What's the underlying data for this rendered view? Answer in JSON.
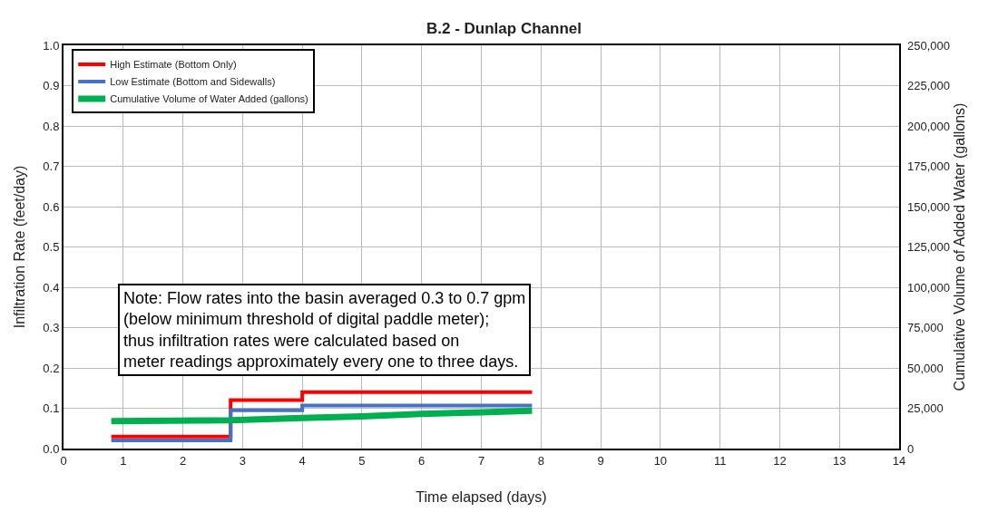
{
  "chart_data": {
    "type": "step",
    "title": "B.2 - Dunlap Channel",
    "xlabel": "Time elapsed (days)",
    "ylabel": "Infiltration Rate (feet/day)",
    "y2label": "Cumulative Volume of Added Water (gallons)",
    "x": [
      0.8,
      2.8,
      4,
      7.85
    ],
    "series": [
      {
        "name": "High Estimate (Bottom Only)",
        "color": "#ff0000",
        "values": [
          0.03,
          0.12,
          0.14,
          0.14
        ]
      },
      {
        "name": "Low Estimate (Bottom and Sidewalls)",
        "color": "#4472c4",
        "values": [
          0.02,
          0.095,
          0.107,
          0.107
        ]
      },
      {
        "name": "Cumulative Volume of Water Added (gallons)",
        "type": "line",
        "color": "#00b050",
        "axis": "y2",
        "x": [
          0.8,
          2.8,
          4,
          5,
          6,
          7,
          7.85
        ],
        "values": [
          17000,
          17500,
          19000,
          20000,
          21500,
          22500,
          23500
        ]
      }
    ],
    "xlim": [
      0,
      14
    ],
    "xticks": [
      0,
      1,
      2,
      3,
      4,
      5,
      6,
      7,
      8,
      9,
      10,
      11,
      12,
      13,
      14
    ],
    "ylim": [
      0,
      1
    ],
    "yticks": [
      {
        "value": 0,
        "label": "0.0"
      },
      0.1,
      0.2,
      0.3,
      0.4,
      0.5,
      0.6,
      0.7,
      0.8,
      0.9,
      {
        "value": 1,
        "label": "1.0"
      }
    ],
    "y2lim": [
      0,
      250000
    ],
    "y2ticks": [
      {
        "value": 0,
        "label": "0"
      },
      {
        "value": 25000,
        "label": "25,000"
      },
      {
        "value": 50000,
        "label": "50,000"
      },
      {
        "value": 75000,
        "label": "75,000"
      },
      {
        "value": 100000,
        "label": "100,000"
      },
      {
        "value": 125000,
        "label": "125,000"
      },
      {
        "value": 150000,
        "label": "150,000"
      },
      {
        "value": 175000,
        "label": "175,000"
      },
      {
        "value": 200000,
        "label": "200,000"
      },
      {
        "value": 225000,
        "label": "225,000"
      },
      {
        "value": 250000,
        "label": "250,000"
      }
    ],
    "annotations": [
      "Note: Flow rates into the basin averaged 0.3 to 0.7 gpm\n(below minimum threshold of digital paddle meter);\nthus infiltration rates were calculated based on\nmeter readings approximately every one to three days."
    ],
    "grid": true,
    "legend": "top left"
  }
}
